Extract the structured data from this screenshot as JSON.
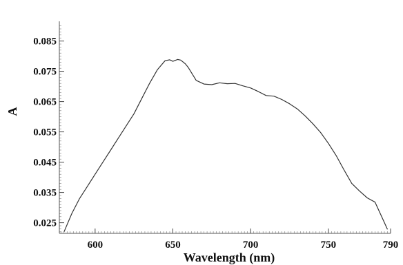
{
  "chart_data": {
    "type": "line",
    "title": "",
    "xlabel": "Wavelength (nm)",
    "ylabel": "A",
    "xlim": [
      577,
      790
    ],
    "ylim": [
      0.0215,
      0.0915
    ],
    "x_ticks": [
      600,
      650,
      700,
      750,
      790
    ],
    "x_tick_labels": [
      "600",
      "650",
      "700",
      "750",
      "790"
    ],
    "y_ticks": [
      0.025,
      0.035,
      0.045,
      0.055,
      0.065,
      0.075,
      0.085
    ],
    "y_tick_labels": [
      "0.025",
      "0.035",
      "0.045",
      "0.055",
      "0.065",
      "0.075",
      "0.085"
    ],
    "grid": false,
    "legend": "none",
    "line_color": "#333333",
    "series": [
      {
        "x": [
          580,
          585,
          590,
          595,
          600,
          605,
          610,
          615,
          620,
          625,
          630,
          635,
          640,
          645,
          648,
          650,
          653,
          655,
          658,
          660,
          665,
          670,
          675,
          680,
          685,
          690,
          695,
          700,
          705,
          710,
          715,
          720,
          725,
          730,
          735,
          740,
          745,
          750,
          755,
          760,
          765,
          770,
          775,
          780,
          785,
          788
        ],
        "y": [
          0.022,
          0.028,
          0.033,
          0.037,
          0.041,
          0.045,
          0.049,
          0.053,
          0.057,
          0.061,
          0.066,
          0.071,
          0.0755,
          0.0785,
          0.0788,
          0.0783,
          0.0789,
          0.0787,
          0.0775,
          0.0762,
          0.072,
          0.0708,
          0.0706,
          0.0712,
          0.0709,
          0.071,
          0.0702,
          0.0695,
          0.0683,
          0.067,
          0.0668,
          0.0657,
          0.0643,
          0.0626,
          0.0603,
          0.0577,
          0.0548,
          0.0512,
          0.0472,
          0.0425,
          0.038,
          0.0355,
          0.0332,
          0.0318,
          0.0262,
          0.0228
        ]
      }
    ]
  }
}
